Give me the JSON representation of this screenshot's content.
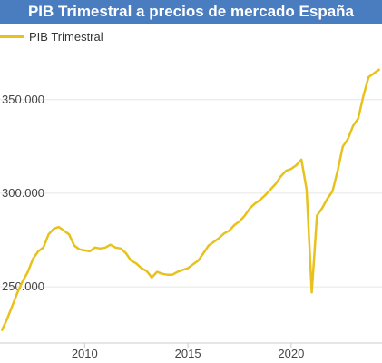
{
  "chart_data": {
    "type": "line",
    "title": "PIB Trimestral a precios de mercado España",
    "xlabel": "",
    "ylabel": "",
    "legend_position": "top-left",
    "grid": true,
    "xlim": [
      2005.9,
      2024.4
    ],
    "ylim": [
      220000,
      378000
    ],
    "x_ticks": [
      {
        "value": 2010,
        "label": "2010"
      },
      {
        "value": 2015,
        "label": "2015"
      },
      {
        "value": 2020,
        "label": "2020"
      }
    ],
    "y_ticks": [
      {
        "value": 250000,
        "label": "250.000"
      },
      {
        "value": 300000,
        "label": "300.000"
      },
      {
        "value": 350000,
        "label": "350.000"
      }
    ],
    "series": [
      {
        "name": "PIB Trimestral",
        "color": "#e8c21c",
        "x": [
          2006.0,
          2006.25,
          2006.5,
          2006.75,
          2007.0,
          2007.25,
          2007.5,
          2007.75,
          2008.0,
          2008.25,
          2008.5,
          2008.75,
          2009.0,
          2009.25,
          2009.5,
          2009.75,
          2010.0,
          2010.25,
          2010.5,
          2010.75,
          2011.0,
          2011.25,
          2011.5,
          2011.75,
          2012.0,
          2012.25,
          2012.5,
          2012.75,
          2013.0,
          2013.25,
          2013.5,
          2013.75,
          2014.0,
          2014.25,
          2014.5,
          2014.75,
          2015.0,
          2015.25,
          2015.5,
          2015.75,
          2016.0,
          2016.25,
          2016.5,
          2016.75,
          2017.0,
          2017.25,
          2017.5,
          2017.75,
          2018.0,
          2018.25,
          2018.5,
          2018.75,
          2019.0,
          2019.25,
          2019.5,
          2019.75,
          2020.0,
          2020.25,
          2020.5,
          2020.75,
          2021.0,
          2021.25,
          2021.5,
          2021.75,
          2022.0,
          2022.25,
          2022.5,
          2022.75,
          2023.0,
          2023.25,
          2023.5,
          2023.75,
          2024.0,
          2024.25
        ],
        "values": [
          227000,
          233000,
          240000,
          247000,
          253000,
          258000,
          265000,
          269000,
          271000,
          278000,
          281000,
          282000,
          280000,
          278000,
          272000,
          270000,
          269500,
          269000,
          271000,
          270500,
          271000,
          272500,
          271000,
          270500,
          268000,
          264000,
          262500,
          260000,
          258500,
          255000,
          258000,
          257000,
          256500,
          256500,
          258000,
          259000,
          260000,
          262000,
          264000,
          268000,
          272000,
          274000,
          276000,
          278500,
          280000,
          283000,
          285000,
          288000,
          292000,
          294500,
          296500,
          299000,
          302000,
          305000,
          309000,
          312000,
          313000,
          315000,
          318000,
          302000,
          247000,
          288000,
          292000,
          297000,
          301000,
          312000,
          325000,
          329000,
          336000,
          340000,
          352000,
          362000,
          364000,
          366000
        ]
      }
    ]
  }
}
